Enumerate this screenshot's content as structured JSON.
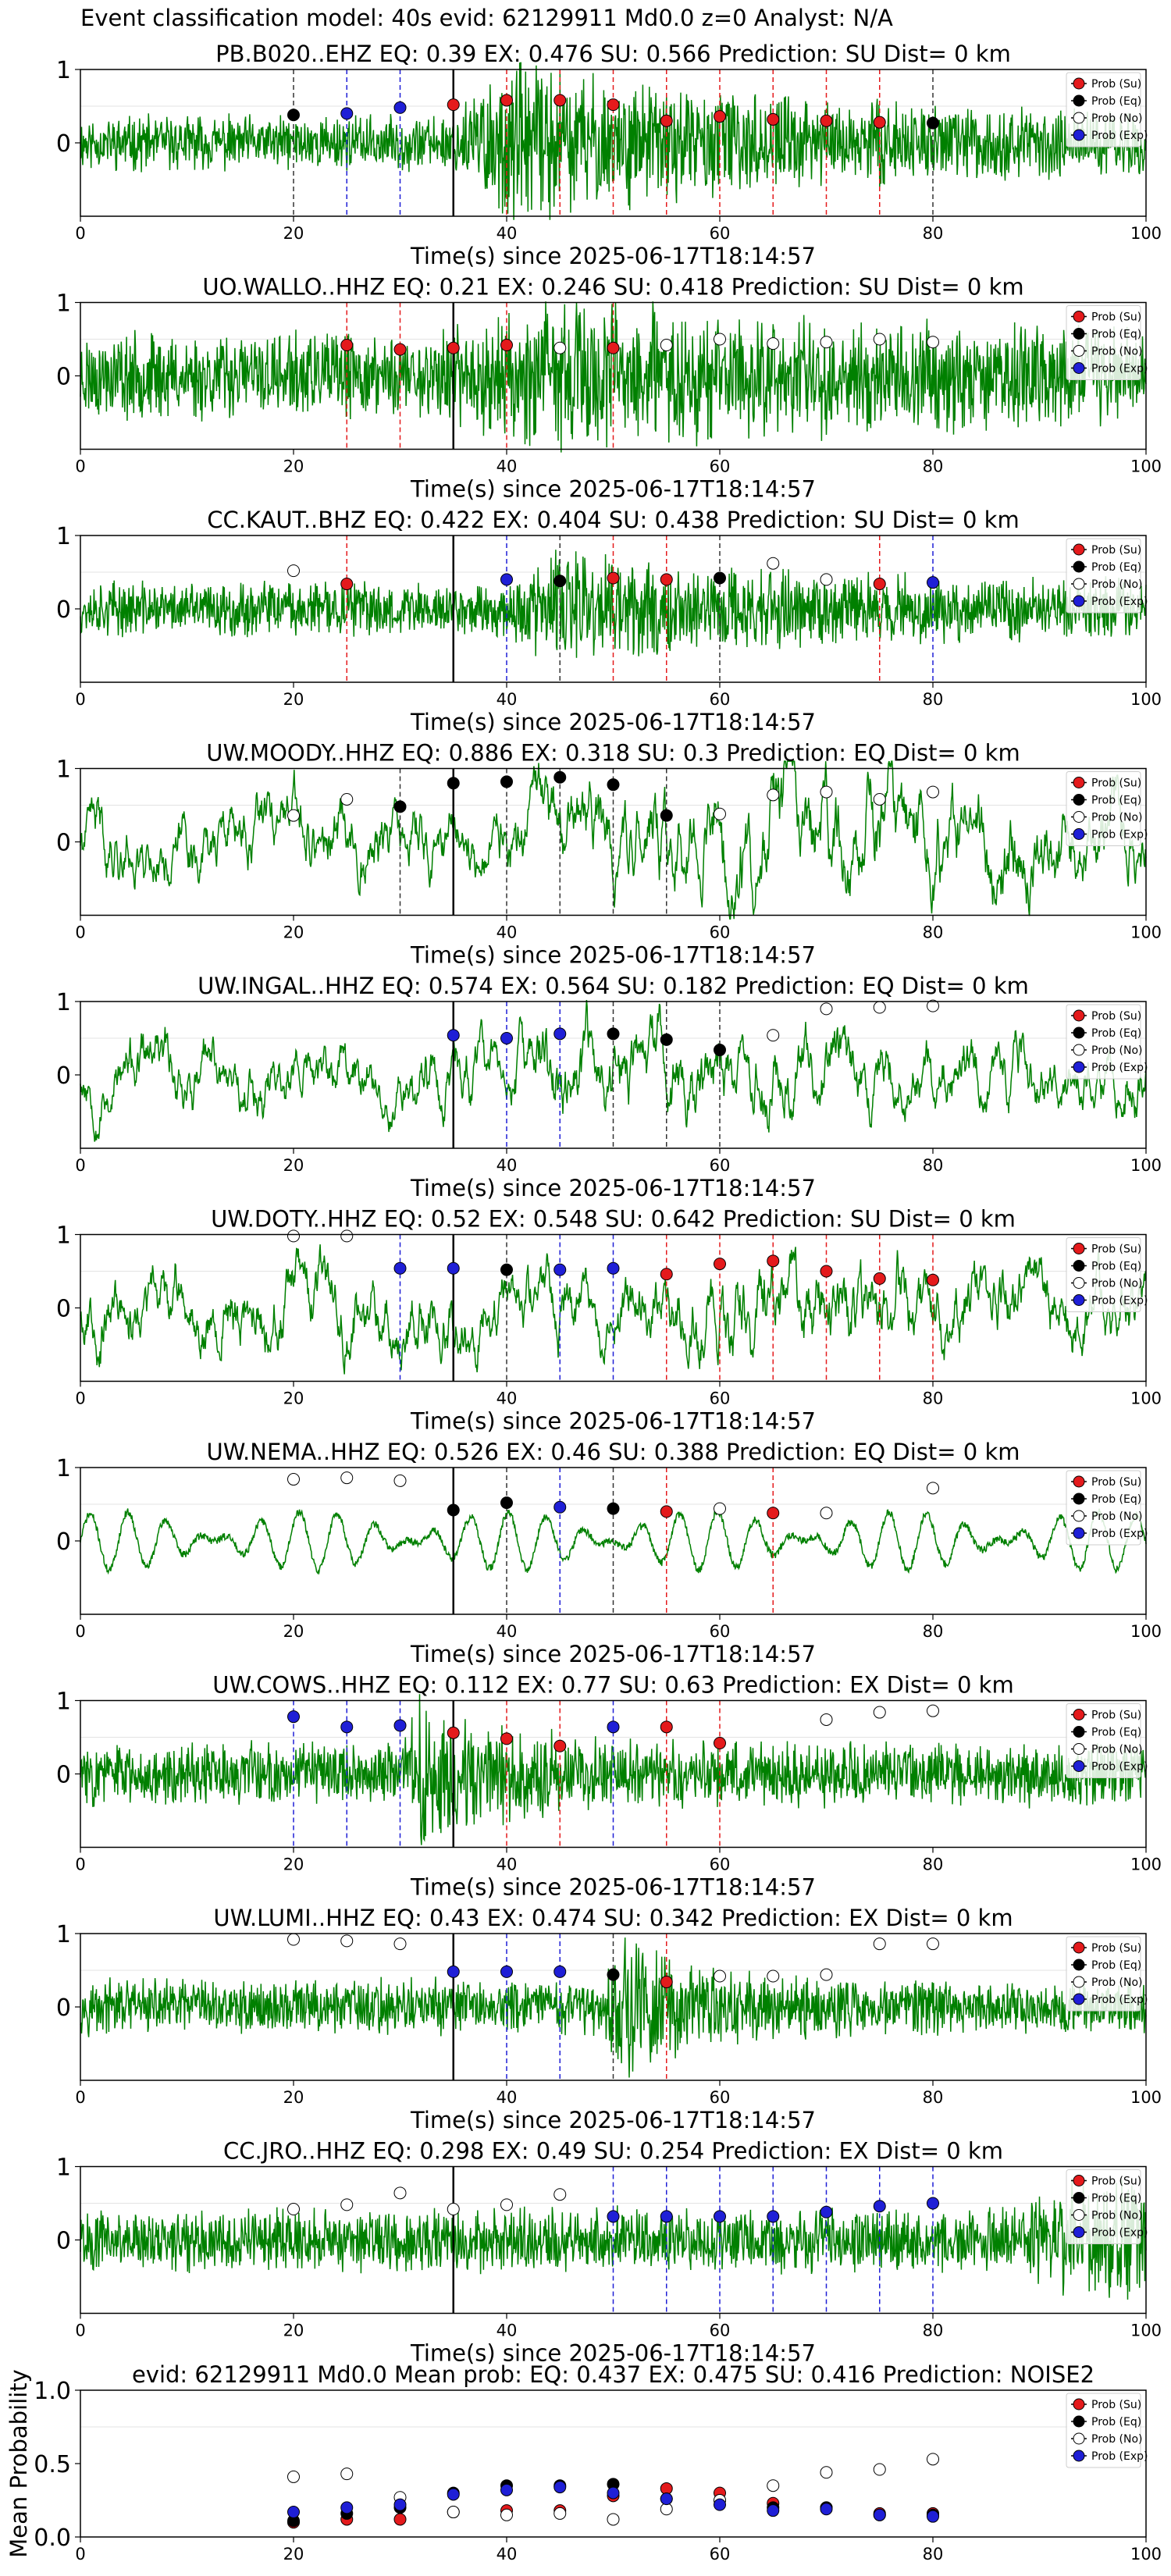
{
  "figure_title": "Event classification model: 40s evid: 62129911 Md0.0 z=0 Analyst: N/A",
  "legend_labels": [
    "Prob (Su)",
    "Prob (Eq)",
    "Prob (No)",
    "Prob (Exp)"
  ],
  "colors": {
    "su": "#e41a1c",
    "eq": "#000000",
    "no": "#ffffff",
    "exp": "#1f1fd6",
    "trace": "#008000"
  },
  "chart_data": [
    {
      "type": "line",
      "title": "PB.B020..EHZ   EQ: 0.39   EX: 0.476   SU: 0.566    Prediction: SU     Dist= 0 km",
      "xlabel": "Time(s) since 2025-06-17T18:14:57",
      "xlim": [
        0,
        100
      ],
      "ylim": [
        -1,
        1
      ],
      "xticks": [
        0,
        20,
        40,
        60,
        80,
        100
      ],
      "yticks": [
        0,
        1
      ],
      "waveform": {
        "style": "emergent",
        "amp": 0.35,
        "onset": 34,
        "peak_time": 40,
        "peak_amp": 1.05,
        "decay": 25,
        "freq": 2.6,
        "seed": 11
      },
      "origin_line": 35,
      "markers": [
        {
          "t": 20,
          "cls": "eq",
          "p": 0.38
        },
        {
          "t": 25,
          "cls": "exp",
          "p": 0.4
        },
        {
          "t": 30,
          "cls": "exp",
          "p": 0.48
        },
        {
          "t": 35,
          "cls": "su",
          "p": 0.52
        },
        {
          "t": 40,
          "cls": "su",
          "p": 0.58
        },
        {
          "t": 45,
          "cls": "su",
          "p": 0.58
        },
        {
          "t": 50,
          "cls": "su",
          "p": 0.52
        },
        {
          "t": 55,
          "cls": "su",
          "p": 0.3
        },
        {
          "t": 60,
          "cls": "su",
          "p": 0.36
        },
        {
          "t": 65,
          "cls": "su",
          "p": 0.32
        },
        {
          "t": 70,
          "cls": "su",
          "p": 0.3
        },
        {
          "t": 75,
          "cls": "su",
          "p": 0.28
        },
        {
          "t": 80,
          "cls": "eq",
          "p": 0.27
        }
      ]
    },
    {
      "type": "line",
      "title": "UO.WALLO..HHZ   EQ: 0.21   EX: 0.246   SU: 0.418    Prediction: SU    Dist= 0 km",
      "xlabel": "Time(s) since 2025-06-17T18:14:57",
      "xlim": [
        0,
        100
      ],
      "ylim": [
        -1,
        1
      ],
      "xticks": [
        0,
        20,
        40,
        60,
        80,
        100
      ],
      "yticks": [
        0,
        1
      ],
      "waveform": {
        "style": "noisy",
        "amp": 0.55,
        "onset": 33,
        "peak_time": 46,
        "peak_amp": 1.0,
        "decay": 30,
        "freq": 3.0,
        "seed": 23
      },
      "origin_line": 35,
      "markers": [
        {
          "t": 25,
          "cls": "su",
          "p": 0.42
        },
        {
          "t": 30,
          "cls": "su",
          "p": 0.36
        },
        {
          "t": 35,
          "cls": "su",
          "p": 0.38
        },
        {
          "t": 40,
          "cls": "su",
          "p": 0.42
        },
        {
          "t": 45,
          "cls": "no",
          "p": 0.38
        },
        {
          "t": 50,
          "cls": "su",
          "p": 0.38
        },
        {
          "t": 55,
          "cls": "no",
          "p": 0.42
        },
        {
          "t": 60,
          "cls": "no",
          "p": 0.5
        },
        {
          "t": 65,
          "cls": "no",
          "p": 0.44
        },
        {
          "t": 70,
          "cls": "no",
          "p": 0.46
        },
        {
          "t": 75,
          "cls": "no",
          "p": 0.5
        },
        {
          "t": 80,
          "cls": "no",
          "p": 0.46
        }
      ]
    },
    {
      "type": "line",
      "title": "CC.KAUT..BHZ   EQ: 0.422   EX: 0.404   SU: 0.438    Prediction: SU     Dist= 0 km",
      "xlabel": "Time(s) since 2025-06-17T18:14:57",
      "xlim": [
        0,
        100
      ],
      "ylim": [
        -1,
        1
      ],
      "xticks": [
        0,
        20,
        40,
        60,
        80,
        100
      ],
      "yticks": [
        0,
        1
      ],
      "waveform": {
        "style": "noisy",
        "amp": 0.35,
        "onset": 40,
        "peak_time": 45,
        "peak_amp": 0.8,
        "decay": 20,
        "freq": 3.0,
        "seed": 37
      },
      "origin_line": 35,
      "markers": [
        {
          "t": 20,
          "cls": "no",
          "p": 0.52
        },
        {
          "t": 25,
          "cls": "su",
          "p": 0.34
        },
        {
          "t": 40,
          "cls": "exp",
          "p": 0.4
        },
        {
          "t": 45,
          "cls": "eq",
          "p": 0.38
        },
        {
          "t": 50,
          "cls": "su",
          "p": 0.42
        },
        {
          "t": 55,
          "cls": "su",
          "p": 0.4
        },
        {
          "t": 60,
          "cls": "eq",
          "p": 0.42
        },
        {
          "t": 65,
          "cls": "no",
          "p": 0.62
        },
        {
          "t": 70,
          "cls": "no",
          "p": 0.4
        },
        {
          "t": 75,
          "cls": "su",
          "p": 0.34
        },
        {
          "t": 80,
          "cls": "exp",
          "p": 0.36
        }
      ]
    },
    {
      "type": "line",
      "title": "UW.MOODY..HHZ   EQ: 0.886   EX: 0.318   SU: 0.3    Prediction: EQ     Dist= 0 km",
      "xlabel": "Time(s) since 2025-06-17T18:14:57",
      "xlim": [
        0,
        100
      ],
      "ylim": [
        -1,
        1
      ],
      "xticks": [
        0,
        20,
        40,
        60,
        80,
        100
      ],
      "yticks": [
        0,
        1
      ],
      "waveform": {
        "style": "lowfreq",
        "amp": 0.6,
        "onset": 40,
        "peak_time": 65,
        "peak_amp": 1.0,
        "decay": 30,
        "freq": 0.9,
        "seed": 41
      },
      "origin_line": 35,
      "markers": [
        {
          "t": 20,
          "cls": "no",
          "p": 0.36
        },
        {
          "t": 25,
          "cls": "no",
          "p": 0.58
        },
        {
          "t": 30,
          "cls": "eq",
          "p": 0.48
        },
        {
          "t": 35,
          "cls": "eq",
          "p": 0.8
        },
        {
          "t": 40,
          "cls": "eq",
          "p": 0.82
        },
        {
          "t": 45,
          "cls": "eq",
          "p": 0.88
        },
        {
          "t": 50,
          "cls": "eq",
          "p": 0.78
        },
        {
          "t": 55,
          "cls": "eq",
          "p": 0.36
        },
        {
          "t": 60,
          "cls": "no",
          "p": 0.38
        },
        {
          "t": 65,
          "cls": "no",
          "p": 0.64
        },
        {
          "t": 70,
          "cls": "no",
          "p": 0.68
        },
        {
          "t": 75,
          "cls": "no",
          "p": 0.58
        },
        {
          "t": 80,
          "cls": "no",
          "p": 0.68
        }
      ]
    },
    {
      "type": "line",
      "title": "UW.INGAL..HHZ   EQ: 0.574   EX: 0.564   SU: 0.182    Prediction: EQ     Dist= 0 km",
      "xlabel": "Time(s) since 2025-06-17T18:14:57",
      "xlim": [
        0,
        100
      ],
      "ylim": [
        -1,
        1
      ],
      "xticks": [
        0,
        20,
        40,
        60,
        80,
        100
      ],
      "yticks": [
        0,
        1
      ],
      "waveform": {
        "style": "lowfreq",
        "amp": 0.55,
        "onset": 40,
        "peak_time": 44,
        "peak_amp": 0.8,
        "decay": 20,
        "freq": 1.0,
        "seed": 53
      },
      "origin_line": 35,
      "markers": [
        {
          "t": 35,
          "cls": "exp",
          "p": 0.54
        },
        {
          "t": 40,
          "cls": "exp",
          "p": 0.5
        },
        {
          "t": 45,
          "cls": "exp",
          "p": 0.56
        },
        {
          "t": 50,
          "cls": "eq",
          "p": 0.56
        },
        {
          "t": 55,
          "cls": "eq",
          "p": 0.48
        },
        {
          "t": 60,
          "cls": "eq",
          "p": 0.34
        },
        {
          "t": 65,
          "cls": "no",
          "p": 0.54
        },
        {
          "t": 70,
          "cls": "no",
          "p": 0.9
        },
        {
          "t": 75,
          "cls": "no",
          "p": 0.92
        },
        {
          "t": 80,
          "cls": "no",
          "p": 0.94
        }
      ]
    },
    {
      "type": "line",
      "title": "UW.DOTY..HHZ   EQ: 0.52   EX: 0.548   SU: 0.642    Prediction: SU     Dist= 0 km",
      "xlabel": "Time(s) since 2025-06-17T18:14:57",
      "xlim": [
        0,
        100
      ],
      "ylim": [
        -1,
        1
      ],
      "xticks": [
        0,
        20,
        40,
        60,
        80,
        100
      ],
      "yticks": [
        0,
        1
      ],
      "waveform": {
        "style": "lowfreq",
        "amp": 0.6,
        "onset": 54,
        "peak_time": 62,
        "peak_amp": 0.8,
        "decay": 25,
        "freq": 1.0,
        "seed": 67
      },
      "origin_line": 35,
      "markers": [
        {
          "t": 20,
          "cls": "no",
          "p": 0.98
        },
        {
          "t": 25,
          "cls": "no",
          "p": 0.98
        },
        {
          "t": 30,
          "cls": "exp",
          "p": 0.54
        },
        {
          "t": 35,
          "cls": "exp",
          "p": 0.54
        },
        {
          "t": 40,
          "cls": "eq",
          "p": 0.52
        },
        {
          "t": 45,
          "cls": "exp",
          "p": 0.52
        },
        {
          "t": 50,
          "cls": "exp",
          "p": 0.54
        },
        {
          "t": 55,
          "cls": "su",
          "p": 0.46
        },
        {
          "t": 60,
          "cls": "su",
          "p": 0.6
        },
        {
          "t": 65,
          "cls": "su",
          "p": 0.64
        },
        {
          "t": 70,
          "cls": "su",
          "p": 0.5
        },
        {
          "t": 75,
          "cls": "su",
          "p": 0.4
        },
        {
          "t": 80,
          "cls": "su",
          "p": 0.38
        }
      ]
    },
    {
      "type": "line",
      "title": "UW.NEMA..HHZ   EQ: 0.526   EX: 0.46   SU: 0.388    Prediction: EQ     Dist= 0 km",
      "xlabel": "Time(s) since 2025-06-17T18:14:57",
      "xlim": [
        0,
        100
      ],
      "ylim": [
        -1,
        1
      ],
      "xticks": [
        0,
        20,
        40,
        60,
        80,
        100
      ],
      "yticks": [
        0,
        1
      ],
      "waveform": {
        "style": "sinus",
        "amp": 0.5,
        "onset": 55,
        "peak_time": 60,
        "peak_amp": 0.5,
        "decay": 10,
        "freq": 0.8,
        "seed": 71
      },
      "origin_line": 35,
      "markers": [
        {
          "t": 20,
          "cls": "no",
          "p": 0.84
        },
        {
          "t": 25,
          "cls": "no",
          "p": 0.86
        },
        {
          "t": 30,
          "cls": "no",
          "p": 0.82
        },
        {
          "t": 35,
          "cls": "eq",
          "p": 0.42
        },
        {
          "t": 40,
          "cls": "eq",
          "p": 0.52
        },
        {
          "t": 45,
          "cls": "exp",
          "p": 0.46
        },
        {
          "t": 50,
          "cls": "eq",
          "p": 0.44
        },
        {
          "t": 55,
          "cls": "su",
          "p": 0.4
        },
        {
          "t": 60,
          "cls": "no",
          "p": 0.44
        },
        {
          "t": 65,
          "cls": "su",
          "p": 0.38
        },
        {
          "t": 70,
          "cls": "no",
          "p": 0.38
        },
        {
          "t": 80,
          "cls": "no",
          "p": 0.72
        }
      ]
    },
    {
      "type": "line",
      "title": "UW.COWS..HHZ   EQ: 0.112   EX: 0.77   SU: 0.63    Prediction: EX    Dist= 0 km",
      "xlabel": "Time(s) since 2025-06-17T18:14:57",
      "xlim": [
        0,
        100
      ],
      "ylim": [
        -1,
        1
      ],
      "xticks": [
        0,
        20,
        40,
        60,
        80,
        100
      ],
      "yticks": [
        0,
        1
      ],
      "waveform": {
        "style": "noisy",
        "amp": 0.4,
        "onset": 30,
        "peak_time": 32,
        "peak_amp": 1.0,
        "decay": 8,
        "freq": 2.5,
        "seed": 83
      },
      "origin_line": 35,
      "markers": [
        {
          "t": 20,
          "cls": "exp",
          "p": 0.78
        },
        {
          "t": 25,
          "cls": "exp",
          "p": 0.64
        },
        {
          "t": 30,
          "cls": "exp",
          "p": 0.66
        },
        {
          "t": 35,
          "cls": "su",
          "p": 0.56
        },
        {
          "t": 40,
          "cls": "su",
          "p": 0.48
        },
        {
          "t": 45,
          "cls": "su",
          "p": 0.38
        },
        {
          "t": 50,
          "cls": "exp",
          "p": 0.64
        },
        {
          "t": 55,
          "cls": "su",
          "p": 0.64
        },
        {
          "t": 60,
          "cls": "su",
          "p": 0.42
        },
        {
          "t": 70,
          "cls": "no",
          "p": 0.74
        },
        {
          "t": 75,
          "cls": "no",
          "p": 0.84
        },
        {
          "t": 80,
          "cls": "no",
          "p": 0.86
        }
      ]
    },
    {
      "type": "line",
      "title": "UW.LUMI..HHZ   EQ: 0.43   EX: 0.474   SU: 0.342    Prediction: EX     Dist= 0 km",
      "xlabel": "Time(s) since 2025-06-17T18:14:57",
      "xlim": [
        0,
        100
      ],
      "ylim": [
        -1,
        1
      ],
      "xticks": [
        0,
        20,
        40,
        60,
        80,
        100
      ],
      "yticks": [
        0,
        1
      ],
      "waveform": {
        "style": "noisy",
        "amp": 0.35,
        "onset": 49,
        "peak_time": 51,
        "peak_amp": 1.0,
        "decay": 6,
        "freq": 3.0,
        "seed": 97
      },
      "origin_line": 35,
      "markers": [
        {
          "t": 20,
          "cls": "no",
          "p": 0.92
        },
        {
          "t": 25,
          "cls": "no",
          "p": 0.9
        },
        {
          "t": 30,
          "cls": "no",
          "p": 0.86
        },
        {
          "t": 35,
          "cls": "exp",
          "p": 0.48
        },
        {
          "t": 40,
          "cls": "exp",
          "p": 0.48
        },
        {
          "t": 45,
          "cls": "exp",
          "p": 0.48
        },
        {
          "t": 50,
          "cls": "eq",
          "p": 0.44
        },
        {
          "t": 55,
          "cls": "su",
          "p": 0.34
        },
        {
          "t": 60,
          "cls": "no",
          "p": 0.42
        },
        {
          "t": 65,
          "cls": "no",
          "p": 0.42
        },
        {
          "t": 70,
          "cls": "no",
          "p": 0.44
        },
        {
          "t": 75,
          "cls": "no",
          "p": 0.86
        },
        {
          "t": 80,
          "cls": "no",
          "p": 0.86
        }
      ]
    },
    {
      "type": "line",
      "title": "CC.JRO..HHZ   EQ: 0.298   EX: 0.49   SU: 0.254    Prediction: EX     Dist= 0 km",
      "xlabel": "Time(s) since 2025-06-17T18:14:57",
      "xlim": [
        0,
        100
      ],
      "ylim": [
        -1,
        1
      ],
      "xticks": [
        0,
        20,
        40,
        60,
        80,
        100
      ],
      "yticks": [
        0,
        1
      ],
      "waveform": {
        "style": "noisy",
        "amp": 0.4,
        "onset": 88,
        "peak_time": 95,
        "peak_amp": 0.9,
        "decay": 15,
        "freq": 2.0,
        "seed": 101
      },
      "origin_line": 35,
      "markers": [
        {
          "t": 20,
          "cls": "no",
          "p": 0.42
        },
        {
          "t": 25,
          "cls": "no",
          "p": 0.48
        },
        {
          "t": 30,
          "cls": "no",
          "p": 0.64
        },
        {
          "t": 35,
          "cls": "no",
          "p": 0.42
        },
        {
          "t": 40,
          "cls": "no",
          "p": 0.48
        },
        {
          "t": 45,
          "cls": "no",
          "p": 0.62
        },
        {
          "t": 50,
          "cls": "exp",
          "p": 0.32
        },
        {
          "t": 55,
          "cls": "exp",
          "p": 0.32
        },
        {
          "t": 60,
          "cls": "exp",
          "p": 0.32
        },
        {
          "t": 65,
          "cls": "exp",
          "p": 0.32
        },
        {
          "t": 70,
          "cls": "exp",
          "p": 0.38
        },
        {
          "t": 75,
          "cls": "exp",
          "p": 0.46
        },
        {
          "t": 80,
          "cls": "exp",
          "p": 0.5
        }
      ]
    },
    {
      "type": "scatter",
      "title": "evid: 62129911  Md0.0   Mean prob:   EQ: 0.437   EX: 0.475   SU: 0.416   Prediction: NOISE2",
      "xlabel": "",
      "ylabel": "Mean Probability",
      "xlim": [
        0,
        100
      ],
      "ylim": [
        0,
        1
      ],
      "xticks": [
        0,
        20,
        40,
        60,
        80,
        100
      ],
      "yticks": [
        0.0,
        0.5,
        1.0
      ],
      "ytick_labels": [
        "0.0",
        "0.5",
        "1.0"
      ],
      "t": [
        20,
        25,
        30,
        35,
        40,
        45,
        50,
        55,
        60,
        65,
        70,
        75,
        80
      ],
      "series": [
        {
          "name": "Prob (Su)",
          "cls": "su",
          "values": [
            0.1,
            0.12,
            0.12,
            0.17,
            0.18,
            0.18,
            0.28,
            0.33,
            0.3,
            0.23,
            0.2,
            0.16,
            0.16
          ]
        },
        {
          "name": "Prob (Eq)",
          "cls": "eq",
          "values": [
            0.11,
            0.16,
            0.2,
            0.3,
            0.35,
            0.35,
            0.36,
            0.26,
            0.25,
            0.2,
            0.2,
            0.15,
            0.15
          ]
        },
        {
          "name": "Prob (No)",
          "cls": "no",
          "values": [
            0.41,
            0.43,
            0.27,
            0.17,
            0.15,
            0.16,
            0.12,
            0.19,
            0.25,
            0.35,
            0.44,
            0.46,
            0.53
          ]
        },
        {
          "name": "Prob (Exp)",
          "cls": "exp",
          "values": [
            0.17,
            0.2,
            0.22,
            0.29,
            0.32,
            0.34,
            0.3,
            0.26,
            0.22,
            0.18,
            0.19,
            0.15,
            0.14
          ]
        }
      ]
    }
  ]
}
